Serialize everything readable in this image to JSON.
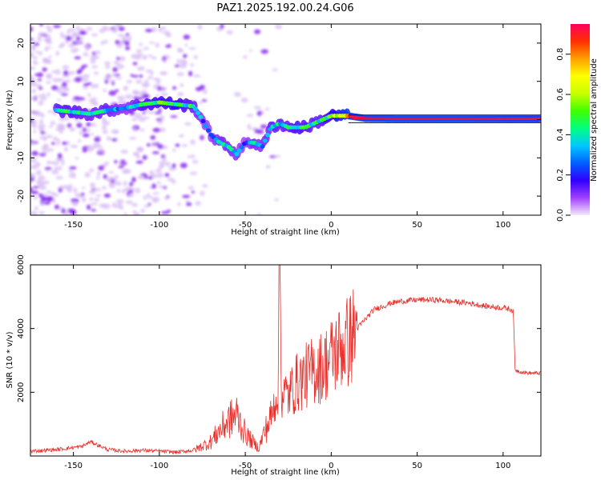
{
  "figure_title": "PAZ1.2025.192.00.24.G06",
  "chart_data": [
    {
      "type": "heatmap",
      "xlabel": "Height of straight line (km)",
      "ylabel": "Frequency (Hz)",
      "xlim": [
        -175,
        122
      ],
      "ylim": [
        -25,
        25
      ],
      "xticks": [
        -150,
        -100,
        -50,
        0,
        50,
        100
      ],
      "yticks": [
        -20,
        -10,
        0,
        10,
        20
      ],
      "colorbar": {
        "label": "Normalized spectral amplitude",
        "range": [
          0,
          0.95
        ],
        "ticks": [
          "0.0",
          "0.2",
          "0.4",
          "0.6",
          "0.8"
        ],
        "colormap": [
          "#f4eaf8",
          "#a040ff",
          "#3000ff",
          "#0060ff",
          "#00c8ff",
          "#00ff80",
          "#40ff00",
          "#c8ff00",
          "#ffff00",
          "#ffa000",
          "#ff3000",
          "#ff0060"
        ]
      },
      "ridge": {
        "x": [
          -160,
          -150,
          -140,
          -130,
          -120,
          -110,
          -100,
          -90,
          -80,
          -75,
          -70,
          -65,
          -60,
          -55,
          -50,
          -45,
          -40,
          -35,
          -30,
          -25,
          -20,
          -15,
          -10,
          -5,
          0,
          5,
          10,
          20,
          40,
          60,
          80,
          100,
          122
        ],
        "frequency": [
          2.5,
          2,
          1.5,
          2.5,
          3,
          4,
          4.5,
          4,
          3.5,
          0,
          -4,
          -6,
          -7,
          -9,
          -6,
          -6,
          -7,
          -2,
          -1,
          -2,
          -2,
          -2,
          -1,
          0,
          1,
          1,
          1,
          0.3,
          0.2,
          0.2,
          0.2,
          0.2,
          0.2
        ],
        "amplitude": [
          0.5,
          0.55,
          0.45,
          0.5,
          0.35,
          0.55,
          0.6,
          0.65,
          0.5,
          0.35,
          0.3,
          0.45,
          0.45,
          0.4,
          0.3,
          0.45,
          0.4,
          0.5,
          0.5,
          0.5,
          0.6,
          0.55,
          0.5,
          0.55,
          0.65,
          0.8,
          0.9,
          0.95,
          0.95,
          0.95,
          0.95,
          0.92,
          0.9
        ]
      }
    },
    {
      "type": "line",
      "xlabel": "Height of straight line (km)",
      "ylabel": "SNR (10 * v/v)",
      "xlim": [
        -175,
        122
      ],
      "ylim": [
        0,
        6000
      ],
      "xticks": [
        -150,
        -100,
        -50,
        0,
        50,
        100
      ],
      "yticks": [
        2000,
        4000,
        6000
      ],
      "series": [
        {
          "color": "#e8302c",
          "x": [
            -175,
            -160,
            -145,
            -140,
            -130,
            -120,
            -110,
            -100,
            -90,
            -80,
            -70,
            -65,
            -60,
            -55,
            -50,
            -45,
            -42,
            -40,
            -35,
            -31,
            -30,
            -29,
            -25,
            -20,
            -15,
            -10,
            -5,
            0,
            5,
            10,
            15,
            20,
            25,
            30,
            35,
            40,
            50,
            60,
            70,
            80,
            90,
            100,
            105,
            106,
            107,
            110,
            115,
            122
          ],
          "y": [
            150,
            200,
            300,
            450,
            200,
            150,
            180,
            150,
            120,
            180,
            450,
            800,
            1100,
            1300,
            700,
            400,
            250,
            600,
            1200,
            2100,
            6000,
            2000,
            1900,
            2300,
            2500,
            2700,
            2800,
            3100,
            3400,
            3600,
            4000,
            4300,
            4600,
            4700,
            4800,
            4850,
            4900,
            4900,
            4850,
            4800,
            4700,
            4650,
            4600,
            4500,
            2700,
            2650,
            2600,
            2600
          ]
        }
      ]
    }
  ]
}
